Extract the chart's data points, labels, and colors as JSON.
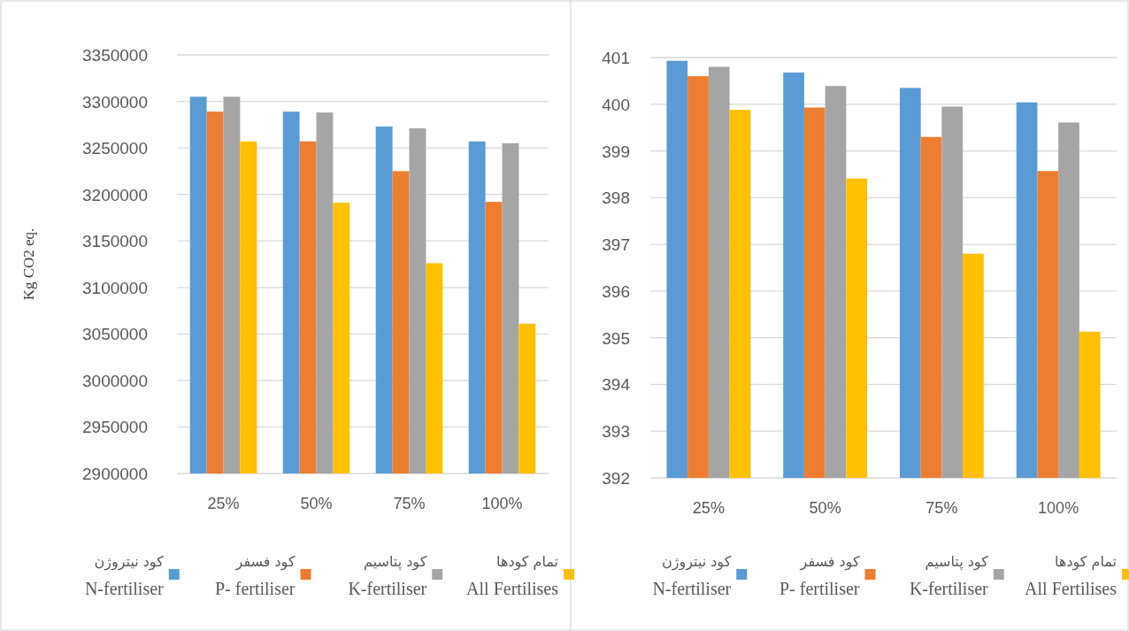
{
  "chart_data": [
    {
      "type": "bar",
      "ylabel": "Kg CO2 eq.",
      "categories": [
        "25%",
        "50%",
        "75%",
        "100%"
      ],
      "ylim": [
        2900000,
        3350000
      ],
      "yticks": [
        2900000,
        2950000,
        3000000,
        3050000,
        3100000,
        3150000,
        3200000,
        3250000,
        3300000,
        3350000
      ],
      "grid": "y",
      "legend": "bottom",
      "series": [
        {
          "name": "کود نیتروژن\nN-fertiliser",
          "color": "#5b9bd5",
          "values": [
            3305000,
            3289000,
            3273000,
            3257000
          ]
        },
        {
          "name": "کود فسفر\nP- fertiliser",
          "color": "#ed7d31",
          "values": [
            3289000,
            3257000,
            3225000,
            3192000
          ]
        },
        {
          "name": "کود پتاسیم\nK-fertiliser",
          "color": "#a5a5a5",
          "values": [
            3305000,
            3288000,
            3271000,
            3255000
          ]
        },
        {
          "name": "تمام کودها\nAll Fertilises",
          "color": "#ffc000",
          "values": [
            3257000,
            3191000,
            3126000,
            3061000
          ]
        }
      ]
    },
    {
      "type": "bar",
      "categories": [
        "25%",
        "50%",
        "75%",
        "100%"
      ],
      "ylim": [
        392,
        401
      ],
      "yticks": [
        392,
        393,
        394,
        395,
        396,
        397,
        398,
        399,
        400,
        401
      ],
      "grid": "y",
      "legend": "bottom",
      "series": [
        {
          "name": "کود نیتروژن\nN-fertiliser",
          "color": "#5b9bd5",
          "values": [
            400.93,
            400.68,
            400.35,
            400.04
          ]
        },
        {
          "name": "کود فسفر\nP- fertiliser",
          "color": "#ed7d31",
          "values": [
            400.6,
            399.93,
            399.3,
            398.57
          ]
        },
        {
          "name": "کود پتاسیم\nK-fertiliser",
          "color": "#a5a5a5",
          "values": [
            400.8,
            400.39,
            399.95,
            399.61
          ]
        },
        {
          "name": "تمام کودها\nAll Fertilises",
          "color": "#ffc000",
          "values": [
            399.88,
            398.41,
            396.8,
            395.13
          ]
        }
      ]
    }
  ]
}
